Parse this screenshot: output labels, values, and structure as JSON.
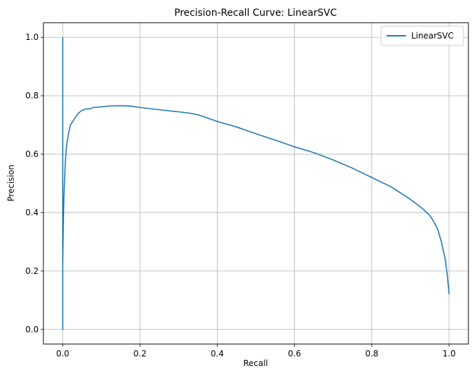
{
  "chart_data": {
    "type": "line",
    "title": "Precision-Recall Curve: LinearSVC",
    "xlabel": "Recall",
    "ylabel": "Precision",
    "xlim": [
      -0.05,
      1.05
    ],
    "ylim": [
      -0.05,
      1.05
    ],
    "x_ticks": [
      0.0,
      0.2,
      0.4,
      0.6,
      0.8,
      1.0
    ],
    "x_tick_labels": [
      "0.0",
      "0.2",
      "0.4",
      "0.6",
      "0.8",
      "1.0"
    ],
    "y_ticks": [
      0.0,
      0.2,
      0.4,
      0.6,
      0.8,
      1.0
    ],
    "y_tick_labels": [
      "0.0",
      "0.2",
      "0.4",
      "0.6",
      "0.8",
      "1.0"
    ],
    "grid": true,
    "legend_position": "top-right",
    "series": [
      {
        "name": "LinearSVC",
        "color": "#1f77b4",
        "x": [
          0.0,
          0.0,
          0.0,
          0.001,
          0.002,
          0.003,
          0.005,
          0.007,
          0.01,
          0.015,
          0.02,
          0.03,
          0.04,
          0.05,
          0.06,
          0.07,
          0.08,
          0.1,
          0.12,
          0.15,
          0.18,
          0.2,
          0.25,
          0.3,
          0.33,
          0.35,
          0.4,
          0.45,
          0.5,
          0.55,
          0.6,
          0.65,
          0.7,
          0.75,
          0.8,
          0.85,
          0.9,
          0.93,
          0.95,
          0.96,
          0.97,
          0.98,
          0.99,
          0.995,
          1.0
        ],
        "y": [
          1.0,
          0.0,
          0.22,
          0.3,
          0.38,
          0.45,
          0.52,
          0.58,
          0.63,
          0.67,
          0.7,
          0.72,
          0.74,
          0.75,
          0.755,
          0.755,
          0.76,
          0.762,
          0.765,
          0.766,
          0.764,
          0.76,
          0.752,
          0.745,
          0.74,
          0.735,
          0.712,
          0.693,
          0.67,
          0.648,
          0.625,
          0.605,
          0.58,
          0.552,
          0.52,
          0.488,
          0.445,
          0.415,
          0.39,
          0.37,
          0.345,
          0.3,
          0.24,
          0.19,
          0.12
        ]
      }
    ]
  }
}
